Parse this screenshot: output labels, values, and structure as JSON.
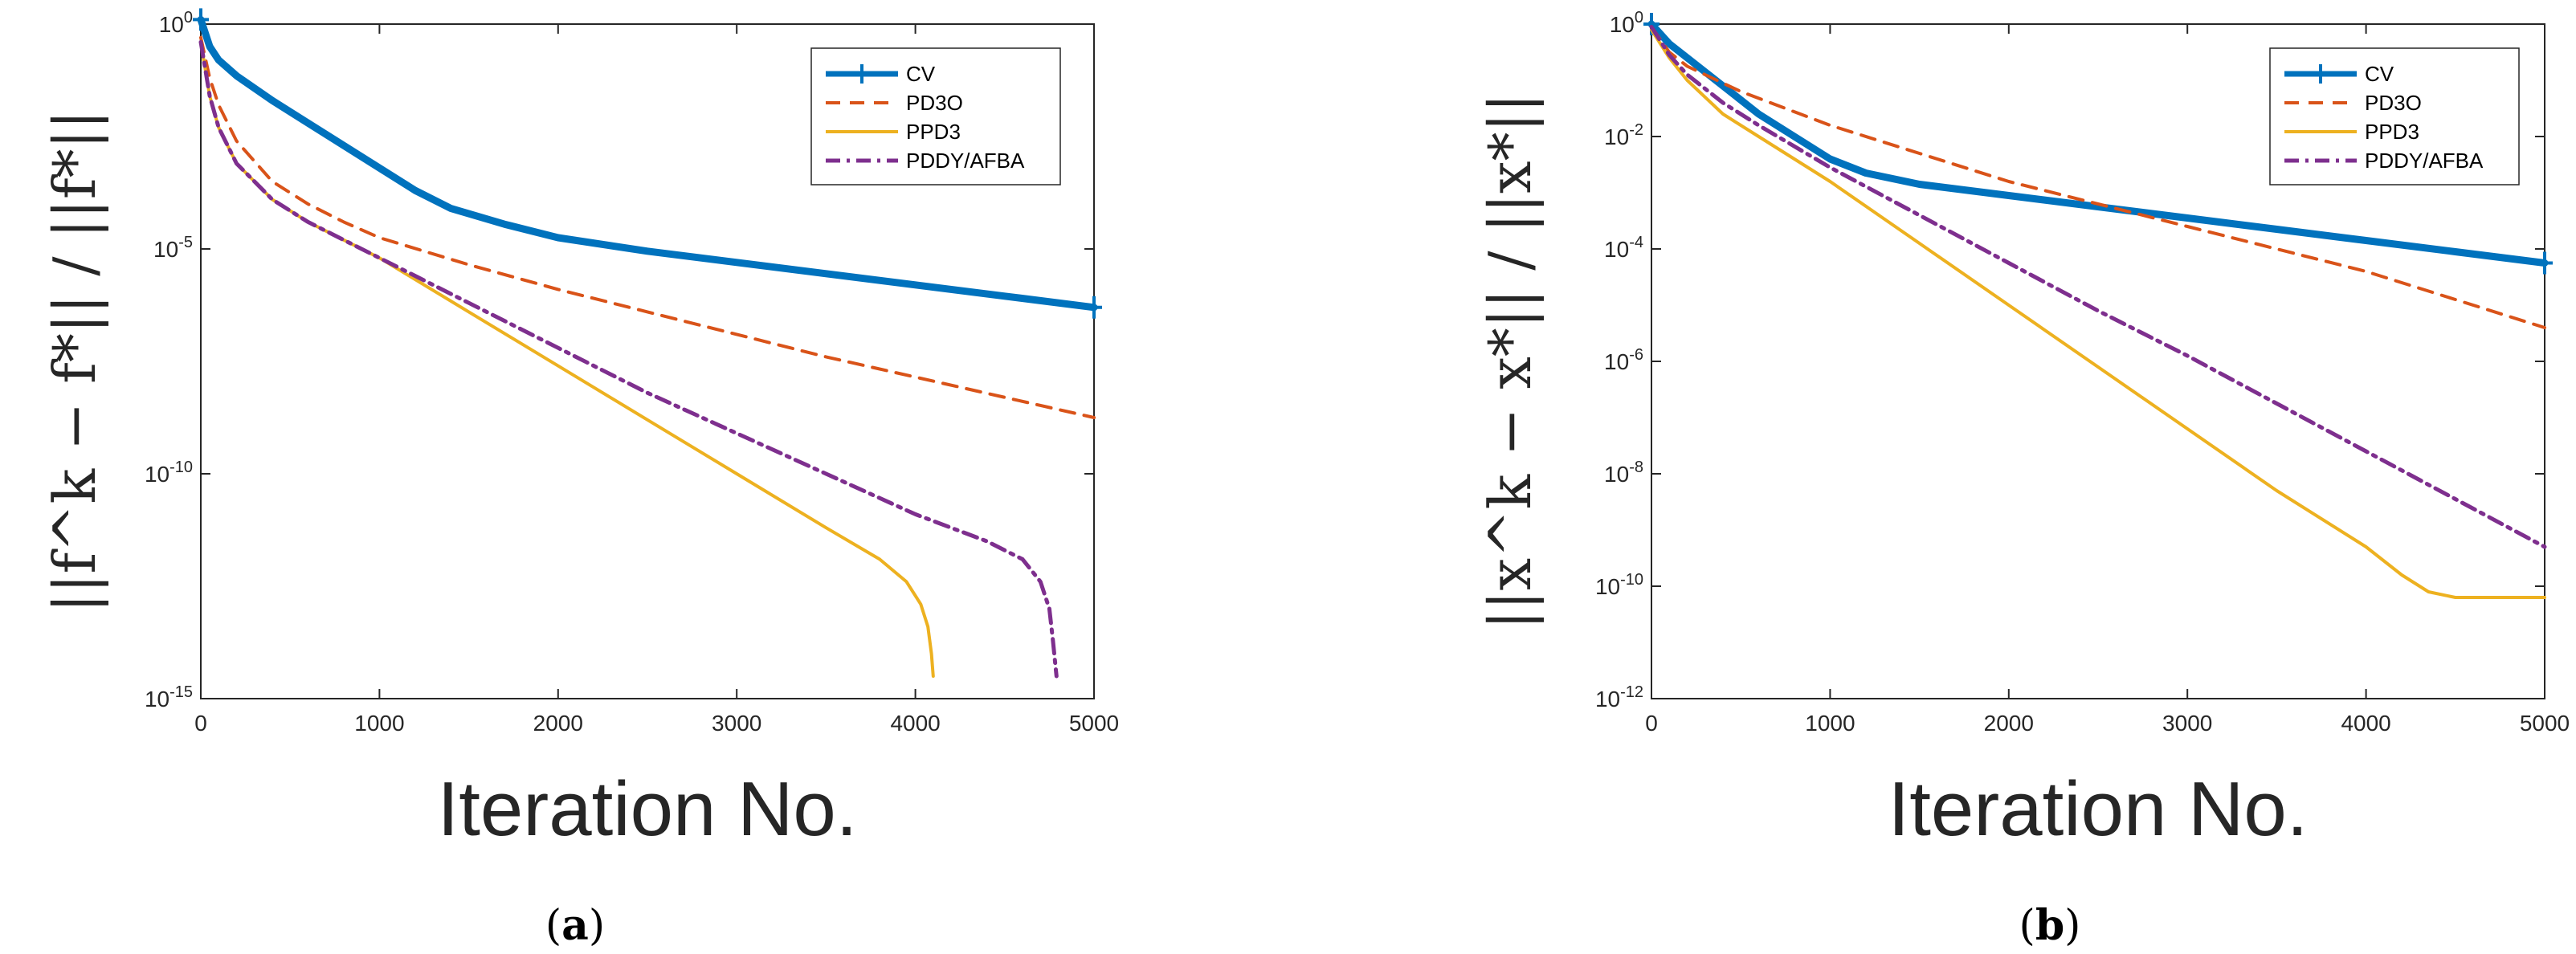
{
  "chart_data": [
    {
      "type": "line",
      "panel_label": [
        "(",
        "a",
        ")"
      ],
      "xlabel": "Iteration    No.",
      "ylabel": "||f^k − f*|| / ||f*||",
      "yscale": "log",
      "xlim": [
        0,
        5000
      ],
      "ylim_exp": [
        -15,
        0
      ],
      "x_ticks": [
        "0",
        "1000",
        "2000",
        "3000",
        "4000",
        "5000"
      ],
      "y_ticks": [
        {
          "base": "10",
          "exp": "0"
        },
        {
          "base": "10",
          "exp": "-5"
        },
        {
          "base": "10",
          "exp": "-10"
        },
        {
          "base": "10",
          "exp": "-15"
        }
      ],
      "legend_position": "top-right",
      "series": [
        {
          "name": "CV",
          "color": "#0072BD",
          "style": "thick-plus",
          "x": [
            0,
            50,
            100,
            200,
            400,
            600,
            800,
            1000,
            1200,
            1400,
            1700,
            2000,
            2500,
            3000,
            3500,
            4000,
            4500,
            5000
          ],
          "log10y": [
            0.1,
            -0.5,
            -0.8,
            -1.15,
            -1.7,
            -2.2,
            -2.7,
            -3.2,
            -3.7,
            -4.1,
            -4.45,
            -4.75,
            -5.05,
            -5.3,
            -5.55,
            -5.8,
            -6.05,
            -6.3
          ]
        },
        {
          "name": "PD3O",
          "color": "#D95319",
          "style": "dashed",
          "x": [
            0,
            50,
            100,
            200,
            400,
            600,
            800,
            1000,
            1500,
            2000,
            2500,
            3000,
            3500,
            4000,
            4500,
            5000
          ],
          "log10y": [
            -0.3,
            -1.2,
            -1.8,
            -2.6,
            -3.5,
            -4.0,
            -4.4,
            -4.75,
            -5.35,
            -5.9,
            -6.4,
            -6.9,
            -7.4,
            -7.85,
            -8.3,
            -8.75
          ]
        },
        {
          "name": "PPD3",
          "color": "#EDB120",
          "style": "solid",
          "x": [
            0,
            50,
            100,
            200,
            400,
            600,
            800,
            1000,
            1500,
            2000,
            2500,
            3000,
            3500,
            3800,
            3950,
            4030,
            4070,
            4090,
            4100
          ],
          "log10y": [
            -0.4,
            -1.6,
            -2.3,
            -3.1,
            -3.9,
            -4.4,
            -4.8,
            -5.2,
            -6.4,
            -7.6,
            -8.8,
            -10.0,
            -11.2,
            -11.9,
            -12.4,
            -12.9,
            -13.4,
            -14.0,
            -14.5
          ]
        },
        {
          "name": "PDDY/AFBA",
          "color": "#7E2F8E",
          "style": "dash-dot",
          "x": [
            0,
            50,
            100,
            200,
            400,
            600,
            800,
            1000,
            1500,
            2000,
            2500,
            3000,
            3500,
            4000,
            4400,
            4600,
            4700,
            4750,
            4770,
            4790
          ],
          "log10y": [
            -0.4,
            -1.6,
            -2.3,
            -3.1,
            -3.9,
            -4.4,
            -4.8,
            -5.2,
            -6.2,
            -7.2,
            -8.2,
            -9.1,
            -10.0,
            -10.9,
            -11.5,
            -11.9,
            -12.4,
            -13.0,
            -13.7,
            -14.5
          ]
        }
      ]
    },
    {
      "type": "line",
      "panel_label": [
        "(",
        "b",
        ")"
      ],
      "xlabel": "Iteration    No.",
      "ylabel": "||x^k − x*|| / ||x*||",
      "yscale": "log",
      "xlim": [
        0,
        5000
      ],
      "ylim_exp": [
        -12,
        0
      ],
      "x_ticks": [
        "0",
        "1000",
        "2000",
        "3000",
        "4000",
        "5000"
      ],
      "y_ticks": [
        {
          "base": "10",
          "exp": "0"
        },
        {
          "base": "10",
          "exp": "-2"
        },
        {
          "base": "10",
          "exp": "-4"
        },
        {
          "base": "10",
          "exp": "-6"
        },
        {
          "base": "10",
          "exp": "-8"
        },
        {
          "base": "10",
          "exp": "-10"
        },
        {
          "base": "10",
          "exp": "-12"
        }
      ],
      "legend_position": "top-right",
      "series": [
        {
          "name": "CV",
          "color": "#0072BD",
          "style": "thick-plus",
          "x": [
            0,
            100,
            200,
            400,
            600,
            800,
            1000,
            1200,
            1500,
            2000,
            2500,
            3000,
            3500,
            4000,
            4500,
            5000
          ],
          "log10y": [
            0,
            -0.35,
            -0.6,
            -1.1,
            -1.6,
            -2.0,
            -2.4,
            -2.65,
            -2.85,
            -3.05,
            -3.25,
            -3.45,
            -3.65,
            -3.85,
            -4.05,
            -4.25
          ]
        },
        {
          "name": "PD3O",
          "color": "#D95319",
          "style": "dashed",
          "x": [
            0,
            100,
            200,
            500,
            1000,
            1500,
            2000,
            2500,
            3000,
            3500,
            4000,
            4500,
            5000
          ],
          "log10y": [
            -0.05,
            -0.5,
            -0.75,
            -1.2,
            -1.8,
            -2.3,
            -2.8,
            -3.2,
            -3.6,
            -4.0,
            -4.4,
            -4.9,
            -5.4
          ]
        },
        {
          "name": "PPD3",
          "color": "#EDB120",
          "style": "solid",
          "x": [
            0,
            100,
            200,
            400,
            600,
            1000,
            1500,
            2000,
            2500,
            3000,
            3500,
            4000,
            4200,
            4350,
            4500,
            4800,
            5000
          ],
          "log10y": [
            -0.1,
            -0.6,
            -1.0,
            -1.6,
            -2.0,
            -2.8,
            -3.9,
            -5.0,
            -6.1,
            -7.2,
            -8.3,
            -9.3,
            -9.8,
            -10.1,
            -10.2,
            -10.2,
            -10.2
          ]
        },
        {
          "name": "PDDY/AFBA",
          "color": "#7E2F8E",
          "style": "dash-dot",
          "x": [
            0,
            100,
            200,
            400,
            600,
            1000,
            1500,
            2000,
            2500,
            3000,
            3500,
            4000,
            4500,
            5000
          ],
          "log10y": [
            -0.05,
            -0.55,
            -0.9,
            -1.4,
            -1.8,
            -2.55,
            -3.4,
            -4.25,
            -5.1,
            -5.9,
            -6.75,
            -7.6,
            -8.45,
            -9.3
          ]
        }
      ]
    }
  ]
}
